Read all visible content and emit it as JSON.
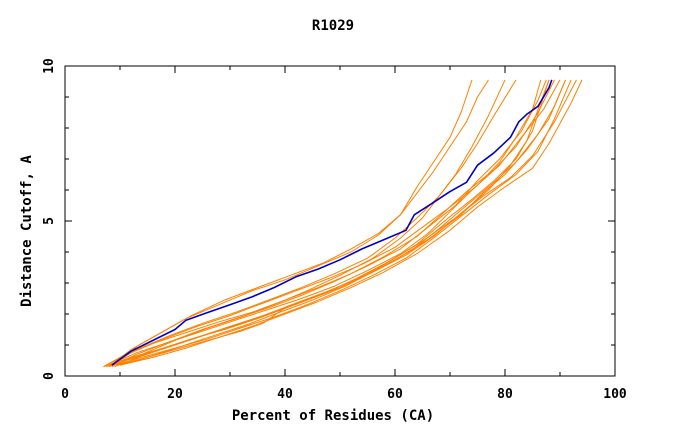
{
  "colors": {
    "background": "#ffffff",
    "axis": "#000000",
    "highlight_series": "#0000cc",
    "other_series": "#ff8000"
  },
  "chart_data": {
    "type": "line",
    "title": "R1029",
    "xlabel": "Percent of Residues (CA)",
    "ylabel": "Distance Cutoff, A",
    "xlim": [
      0,
      100
    ],
    "ylim": [
      0,
      10
    ],
    "x_ticks": [
      0,
      20,
      40,
      60,
      80,
      100
    ],
    "y_ticks": [
      0,
      5,
      10
    ],
    "grid": false,
    "legend": "none",
    "highlight": {
      "color": "#0000cc",
      "points": [
        [
          8.5,
          0.35
        ],
        [
          12,
          0.8
        ],
        [
          16,
          1.15
        ],
        [
          20,
          1.5
        ],
        [
          22,
          1.8
        ],
        [
          26,
          2.05
        ],
        [
          30,
          2.3
        ],
        [
          34,
          2.55
        ],
        [
          38,
          2.85
        ],
        [
          42,
          3.2
        ],
        [
          46,
          3.45
        ],
        [
          50,
          3.75
        ],
        [
          54,
          4.1
        ],
        [
          58,
          4.4
        ],
        [
          62,
          4.7
        ],
        [
          63.5,
          5.2
        ],
        [
          67,
          5.6
        ],
        [
          70,
          5.95
        ],
        [
          73,
          6.25
        ],
        [
          75,
          6.8
        ],
        [
          78,
          7.2
        ],
        [
          81,
          7.7
        ],
        [
          82.5,
          8.2
        ],
        [
          84,
          8.45
        ],
        [
          86,
          8.7
        ],
        [
          88,
          9.3
        ],
        [
          88.5,
          9.55
        ]
      ]
    },
    "other_series_color": "#ff8000",
    "series": [
      {
        "values": [
          [
            7,
            0.3
          ],
          [
            12,
            0.6
          ],
          [
            18,
            0.9
          ],
          [
            24,
            1.25
          ],
          [
            30,
            1.6
          ],
          [
            36,
            1.95
          ],
          [
            42,
            2.35
          ],
          [
            48,
            2.75
          ],
          [
            54,
            3.2
          ],
          [
            60,
            3.75
          ],
          [
            66,
            4.4
          ],
          [
            72,
            5.2
          ],
          [
            76,
            5.9
          ],
          [
            80,
            6.5
          ],
          [
            84,
            7.3
          ],
          [
            88,
            8.3
          ],
          [
            91,
            9.55
          ]
        ]
      },
      {
        "values": [
          [
            7,
            0.3
          ],
          [
            11,
            0.7
          ],
          [
            16,
            1.05
          ],
          [
            22,
            1.4
          ],
          [
            28,
            1.75
          ],
          [
            34,
            2.05
          ],
          [
            40,
            2.45
          ],
          [
            46,
            2.85
          ],
          [
            52,
            3.3
          ],
          [
            58,
            3.85
          ],
          [
            64,
            4.5
          ],
          [
            69,
            5.3
          ],
          [
            73,
            5.95
          ],
          [
            78,
            6.65
          ],
          [
            82,
            7.4
          ],
          [
            86,
            8.5
          ],
          [
            89,
            9.55
          ]
        ]
      },
      {
        "values": [
          [
            8,
            0.35
          ],
          [
            13,
            0.75
          ],
          [
            19,
            1.1
          ],
          [
            25,
            1.45
          ],
          [
            31,
            1.8
          ],
          [
            37,
            2.15
          ],
          [
            43,
            2.5
          ],
          [
            49,
            2.9
          ],
          [
            55,
            3.4
          ],
          [
            61,
            3.95
          ],
          [
            66,
            4.6
          ],
          [
            70,
            5.3
          ],
          [
            74,
            6.0
          ],
          [
            79,
            6.8
          ],
          [
            83,
            7.7
          ],
          [
            87,
            8.6
          ],
          [
            90,
            9.55
          ]
        ]
      },
      {
        "values": [
          [
            7.5,
            0.3
          ],
          [
            12,
            0.55
          ],
          [
            17,
            0.85
          ],
          [
            23,
            1.2
          ],
          [
            29,
            1.5
          ],
          [
            35,
            1.85
          ],
          [
            41,
            2.25
          ],
          [
            47,
            2.65
          ],
          [
            53,
            3.15
          ],
          [
            59,
            3.7
          ],
          [
            65,
            4.35
          ],
          [
            71,
            5.1
          ],
          [
            76,
            5.8
          ],
          [
            81,
            6.4
          ],
          [
            85,
            7.1
          ],
          [
            89,
            8.2
          ],
          [
            93,
            9.55
          ]
        ]
      },
      {
        "values": [
          [
            8,
            0.3
          ],
          [
            14,
            0.7
          ],
          [
            20,
            1.15
          ],
          [
            26,
            1.55
          ],
          [
            32,
            1.9
          ],
          [
            38,
            2.3
          ],
          [
            44,
            2.75
          ],
          [
            50,
            3.25
          ],
          [
            56,
            3.8
          ],
          [
            61,
            4.45
          ],
          [
            65,
            5.1
          ],
          [
            68,
            5.8
          ],
          [
            71,
            6.5
          ],
          [
            74,
            7.4
          ],
          [
            77,
            8.4
          ],
          [
            80,
            9.55
          ]
        ]
      },
      {
        "values": [
          [
            9,
            0.35
          ],
          [
            13,
            0.95
          ],
          [
            18,
            1.45
          ],
          [
            23,
            1.95
          ],
          [
            29,
            2.45
          ],
          [
            35,
            2.85
          ],
          [
            41,
            3.25
          ],
          [
            47,
            3.65
          ],
          [
            52,
            4.1
          ],
          [
            57,
            4.6
          ],
          [
            61,
            5.2
          ],
          [
            64,
            5.9
          ],
          [
            67,
            6.6
          ],
          [
            70,
            7.4
          ],
          [
            73,
            8.2
          ],
          [
            75,
            9.0
          ],
          [
            77,
            9.55
          ]
        ]
      },
      {
        "values": [
          [
            8,
            0.3
          ],
          [
            12,
            0.85
          ],
          [
            17,
            1.35
          ],
          [
            22,
            1.85
          ],
          [
            28,
            2.3
          ],
          [
            34,
            2.75
          ],
          [
            40,
            3.1
          ],
          [
            46,
            3.55
          ],
          [
            52,
            4.0
          ],
          [
            57,
            4.55
          ],
          [
            61,
            5.2
          ],
          [
            64,
            6.1
          ],
          [
            67,
            6.9
          ],
          [
            70,
            7.7
          ],
          [
            72,
            8.5
          ],
          [
            74,
            9.55
          ]
        ]
      },
      {
        "values": [
          [
            10,
            0.35
          ],
          [
            15,
            0.6
          ],
          [
            21,
            0.95
          ],
          [
            27,
            1.3
          ],
          [
            33,
            1.65
          ],
          [
            39,
            2.05
          ],
          [
            45,
            2.45
          ],
          [
            51,
            2.9
          ],
          [
            57,
            3.45
          ],
          [
            63,
            4.05
          ],
          [
            68,
            4.75
          ],
          [
            73,
            5.5
          ],
          [
            78,
            6.25
          ],
          [
            82,
            6.9
          ],
          [
            86,
            7.8
          ],
          [
            89,
            8.7
          ],
          [
            91,
            9.55
          ]
        ]
      },
      {
        "values": [
          [
            10,
            0.35
          ],
          [
            16,
            0.6
          ],
          [
            22,
            0.9
          ],
          [
            28,
            1.25
          ],
          [
            34,
            1.6
          ],
          [
            40,
            2.0
          ],
          [
            46,
            2.4
          ],
          [
            52,
            2.85
          ],
          [
            58,
            3.35
          ],
          [
            64,
            3.95
          ],
          [
            70,
            4.7
          ],
          [
            75,
            5.45
          ],
          [
            80,
            6.1
          ],
          [
            85,
            6.7
          ],
          [
            88,
            7.5
          ],
          [
            92,
            8.8
          ],
          [
            94,
            9.55
          ]
        ]
      },
      {
        "values": [
          [
            9,
            0.3
          ],
          [
            14,
            0.65
          ],
          [
            20,
            1.0
          ],
          [
            26,
            1.35
          ],
          [
            32,
            1.7
          ],
          [
            38,
            2.05
          ],
          [
            44,
            2.45
          ],
          [
            50,
            2.85
          ],
          [
            56,
            3.35
          ],
          [
            62,
            3.9
          ],
          [
            67,
            4.5
          ],
          [
            72,
            5.25
          ],
          [
            77,
            6.0
          ],
          [
            81,
            6.8
          ],
          [
            84,
            7.6
          ],
          [
            86,
            8.6
          ],
          [
            88,
            9.55
          ]
        ]
      },
      {
        "values": [
          [
            8.5,
            0.3
          ],
          [
            13,
            0.7
          ],
          [
            19,
            1.1
          ],
          [
            25,
            1.5
          ],
          [
            31,
            1.85
          ],
          [
            37,
            2.2
          ],
          [
            43,
            2.6
          ],
          [
            49,
            3.05
          ],
          [
            55,
            3.55
          ],
          [
            61,
            4.1
          ],
          [
            66,
            4.8
          ],
          [
            71,
            5.5
          ],
          [
            75,
            6.3
          ],
          [
            79,
            7.0
          ],
          [
            83,
            7.9
          ],
          [
            86,
            8.9
          ],
          [
            87.5,
            9.55
          ]
        ]
      },
      {
        "values": [
          [
            9.5,
            0.35
          ],
          [
            14,
            0.55
          ],
          [
            20,
            0.85
          ],
          [
            26,
            1.15
          ],
          [
            32,
            1.45
          ],
          [
            36,
            1.7
          ],
          [
            40,
            2.2
          ],
          [
            46,
            2.6
          ],
          [
            52,
            3.05
          ],
          [
            58,
            3.6
          ],
          [
            64,
            4.25
          ],
          [
            69,
            5.0
          ],
          [
            74,
            5.7
          ],
          [
            78,
            6.3
          ],
          [
            82,
            7.0
          ],
          [
            85,
            7.9
          ],
          [
            87,
            9.0
          ],
          [
            88,
            9.55
          ]
        ]
      },
      {
        "values": [
          [
            8,
            0.3
          ],
          [
            12,
            0.75
          ],
          [
            18,
            1.2
          ],
          [
            24,
            1.6
          ],
          [
            30,
            1.95
          ],
          [
            36,
            2.35
          ],
          [
            42,
            2.75
          ],
          [
            48,
            3.15
          ],
          [
            54,
            3.6
          ],
          [
            60,
            4.15
          ],
          [
            65,
            4.8
          ],
          [
            70,
            5.45
          ],
          [
            75,
            6.15
          ],
          [
            79,
            6.9
          ],
          [
            82,
            7.7
          ],
          [
            85,
            8.6
          ],
          [
            86.5,
            9.55
          ]
        ]
      },
      {
        "values": [
          [
            7,
            0.3
          ],
          [
            13,
            0.85
          ],
          [
            19,
            1.3
          ],
          [
            25,
            1.7
          ],
          [
            31,
            2.05
          ],
          [
            37,
            2.45
          ],
          [
            43,
            2.85
          ],
          [
            49,
            3.3
          ],
          [
            55,
            3.8
          ],
          [
            60,
            4.45
          ],
          [
            64,
            5.1
          ],
          [
            68,
            5.8
          ],
          [
            72,
            6.7
          ],
          [
            75,
            7.5
          ],
          [
            78,
            8.4
          ],
          [
            82,
            9.55
          ]
        ]
      },
      {
        "values": [
          [
            9,
            0.35
          ],
          [
            14,
            0.6
          ],
          [
            20,
            0.9
          ],
          [
            26,
            1.2
          ],
          [
            32,
            1.55
          ],
          [
            38,
            1.9
          ],
          [
            44,
            2.3
          ],
          [
            50,
            2.75
          ],
          [
            56,
            3.25
          ],
          [
            62,
            3.8
          ],
          [
            67,
            4.45
          ],
          [
            72,
            5.15
          ],
          [
            77,
            5.85
          ],
          [
            82,
            6.5
          ],
          [
            86,
            7.25
          ],
          [
            89,
            8.3
          ],
          [
            92,
            9.55
          ]
        ]
      }
    ]
  }
}
